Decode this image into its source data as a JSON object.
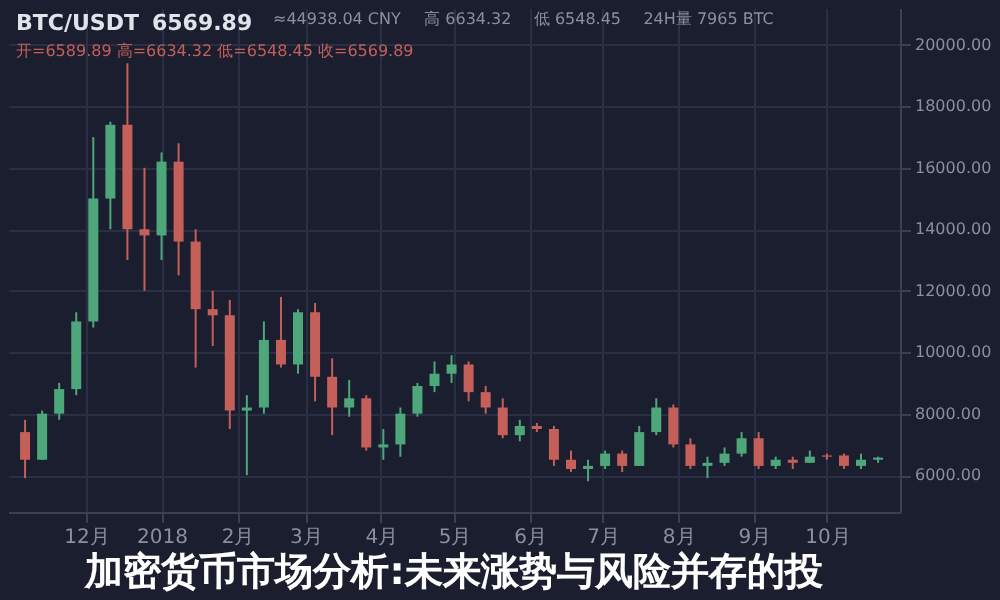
{
  "chart_data": {
    "type": "candlestick",
    "title": "加密货币市场分析:未来涨势与风险并存的投",
    "annotations": [
      "BTC/USDT",
      "6569.89",
      "≈44938.04 CNY",
      "高 6634.32",
      "低 6548.45",
      "24H量 7965 BTC",
      "开=6589.89 高=6634.32 低=6548.45 收=6569.89"
    ],
    "x": [
      "2017-11-06",
      "2017-11-13",
      "2017-11-20",
      "2017-11-27",
      "2017-12-04",
      "2017-12-11",
      "2017-12-18",
      "2017-12-25",
      "2018-01-01",
      "2018-01-08",
      "2018-01-15",
      "2018-01-22",
      "2018-01-29",
      "2018-02-05",
      "2018-02-12",
      "2018-02-19",
      "2018-02-26",
      "2018-03-05",
      "2018-03-12",
      "2018-03-19",
      "2018-03-26",
      "2018-04-02",
      "2018-04-09",
      "2018-04-16",
      "2018-04-23",
      "2018-04-30",
      "2018-05-07",
      "2018-05-14",
      "2018-05-21",
      "2018-05-28",
      "2018-06-04",
      "2018-06-11",
      "2018-06-18",
      "2018-06-25",
      "2018-07-02",
      "2018-07-09",
      "2018-07-16",
      "2018-07-23",
      "2018-07-30",
      "2018-08-06",
      "2018-08-13",
      "2018-08-20",
      "2018-08-27",
      "2018-09-03",
      "2018-09-10",
      "2018-09-17",
      "2018-09-24",
      "2018-10-01",
      "2018-10-08",
      "2018-10-15",
      "2018-10-22"
    ],
    "ohlc": [
      [
        7400,
        7800,
        5900,
        6500
      ],
      [
        6500,
        8100,
        6500,
        8000
      ],
      [
        8000,
        9000,
        7800,
        8800
      ],
      [
        8800,
        11300,
        8600,
        11000
      ],
      [
        11000,
        17000,
        10800,
        15000
      ],
      [
        15000,
        17500,
        14000,
        17400
      ],
      [
        17400,
        19400,
        13000,
        14000
      ],
      [
        14000,
        16000,
        12000,
        13800
      ],
      [
        13800,
        16500,
        13000,
        16200
      ],
      [
        16200,
        16800,
        12500,
        13600
      ],
      [
        13600,
        14000,
        9500,
        11400
      ],
      [
        11400,
        12000,
        10200,
        11200
      ],
      [
        11200,
        11700,
        7500,
        8100
      ],
      [
        8100,
        8600,
        6000,
        8200
      ],
      [
        8200,
        11000,
        8000,
        10400
      ],
      [
        10400,
        11800,
        9500,
        9600
      ],
      [
        9600,
        11400,
        9300,
        11300
      ],
      [
        11300,
        11600,
        8400,
        9200
      ],
      [
        9200,
        9800,
        7300,
        8200
      ],
      [
        8200,
        9100,
        7900,
        8500
      ],
      [
        8500,
        8600,
        6800,
        6900
      ],
      [
        6900,
        7500,
        6500,
        7000
      ],
      [
        7000,
        8200,
        6600,
        8000
      ],
      [
        8000,
        9000,
        7900,
        8900
      ],
      [
        8900,
        9700,
        8700,
        9300
      ],
      [
        9300,
        9900,
        9000,
        9600
      ],
      [
        9600,
        9700,
        8400,
        8700
      ],
      [
        8700,
        8900,
        8000,
        8200
      ],
      [
        8200,
        8500,
        7200,
        7300
      ],
      [
        7300,
        7800,
        7100,
        7600
      ],
      [
        7600,
        7700,
        7400,
        7500
      ],
      [
        7500,
        7600,
        6300,
        6500
      ],
      [
        6500,
        6800,
        6100,
        6200
      ],
      [
        6200,
        6500,
        5800,
        6300
      ],
      [
        6300,
        6800,
        6200,
        6700
      ],
      [
        6700,
        6800,
        6100,
        6300
      ],
      [
        6300,
        7600,
        6300,
        7400
      ],
      [
        7400,
        8500,
        7300,
        8200
      ],
      [
        8200,
        8300,
        6900,
        7000
      ],
      [
        7000,
        7200,
        6200,
        6300
      ],
      [
        6300,
        6600,
        5900,
        6400
      ],
      [
        6400,
        6900,
        6300,
        6700
      ],
      [
        6700,
        7400,
        6600,
        7200
      ],
      [
        7200,
        7400,
        6200,
        6300
      ],
      [
        6300,
        6600,
        6200,
        6500
      ],
      [
        6500,
        6600,
        6200,
        6400
      ],
      [
        6400,
        6800,
        6400,
        6600
      ],
      [
        6600,
        6700,
        6500,
        6640
      ],
      [
        6640,
        6700,
        6200,
        6300
      ],
      [
        6300,
        6700,
        6200,
        6500
      ],
      [
        6500,
        6600,
        6400,
        6570
      ]
    ],
    "colors": [
      "#c45f5a",
      "#4da77a",
      "#4da77a",
      "#4da77a",
      "#4da77a",
      "#4da77a",
      "#c45f5a",
      "#c45f5a",
      "#4da77a",
      "#c45f5a",
      "#c45f5a",
      "#c45f5a",
      "#c45f5a",
      "#4da77a",
      "#4da77a",
      "#c45f5a",
      "#4da77a",
      "#c45f5a",
      "#c45f5a",
      "#4da77a",
      "#c45f5a",
      "#4da77a",
      "#4da77a",
      "#4da77a",
      "#4da77a",
      "#4da77a",
      "#c45f5a",
      "#c45f5a",
      "#c45f5a",
      "#4da77a",
      "#c45f5a",
      "#c45f5a",
      "#c45f5a",
      "#4da77a",
      "#4da77a",
      "#c45f5a",
      "#4da77a",
      "#4da77a",
      "#c45f5a",
      "#c45f5a",
      "#4da77a",
      "#4da77a",
      "#4da77a",
      "#c45f5a",
      "#4da77a",
      "#c45f5a",
      "#4da77a",
      "#c45f5a",
      "#c45f5a",
      "#4da77a",
      "#4da77a"
    ],
    "xlim": [
      "2017-10-30",
      "2018-10-31"
    ],
    "xticks": [
      {
        "value": "2017-12-01",
        "label": "12月"
      },
      {
        "value": "2018-01-01",
        "label": "2018"
      },
      {
        "value": "2018-02-01",
        "label": "2月"
      },
      {
        "value": "2018-03-01",
        "label": "3月"
      },
      {
        "value": "2018-04-01",
        "label": "4月"
      },
      {
        "value": "2018-05-01",
        "label": "5月"
      },
      {
        "value": "2018-06-01",
        "label": "6月"
      },
      {
        "value": "2018-07-01",
        "label": "7月"
      },
      {
        "value": "2018-08-01",
        "label": "8月"
      },
      {
        "value": "2018-09-01",
        "label": "9月"
      },
      {
        "value": "2018-10-01",
        "label": "10月"
      }
    ],
    "ylim": [
      4800,
      21200
    ],
    "yticks": [
      {
        "value": 6000,
        "label": "6000.00"
      },
      {
        "value": 8000,
        "label": "8000.00"
      },
      {
        "value": 10000,
        "label": "10000.00"
      },
      {
        "value": 12000,
        "label": "12000.00"
      },
      {
        "value": 14000,
        "label": "14000.00"
      },
      {
        "value": 16000,
        "label": "16000.00"
      },
      {
        "value": 18000,
        "label": "18000.00"
      },
      {
        "value": 20000,
        "label": "20000.00"
      }
    ],
    "grid": true
  }
}
